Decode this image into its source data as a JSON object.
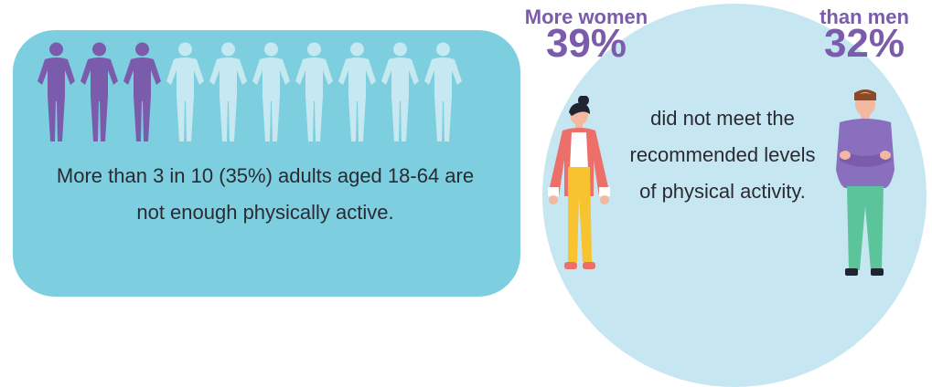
{
  "left_panel": {
    "text": "More than 3 in 10 (35%) adults aged 18-64 are not enough physically active.",
    "figures_total": 10,
    "figures_highlighted": 3,
    "highlight_color": "#7b5cac",
    "base_color": "#c6e8f0",
    "panel_color": "#7dcfe0"
  },
  "right_panel": {
    "women_label": "More women",
    "women_value": "39%",
    "men_label": "than men",
    "men_value": "32%",
    "text": "did not meet the recommended levels of physical activity.",
    "circle_color": "#c6e7f1",
    "accent_color": "#7b5cac"
  }
}
